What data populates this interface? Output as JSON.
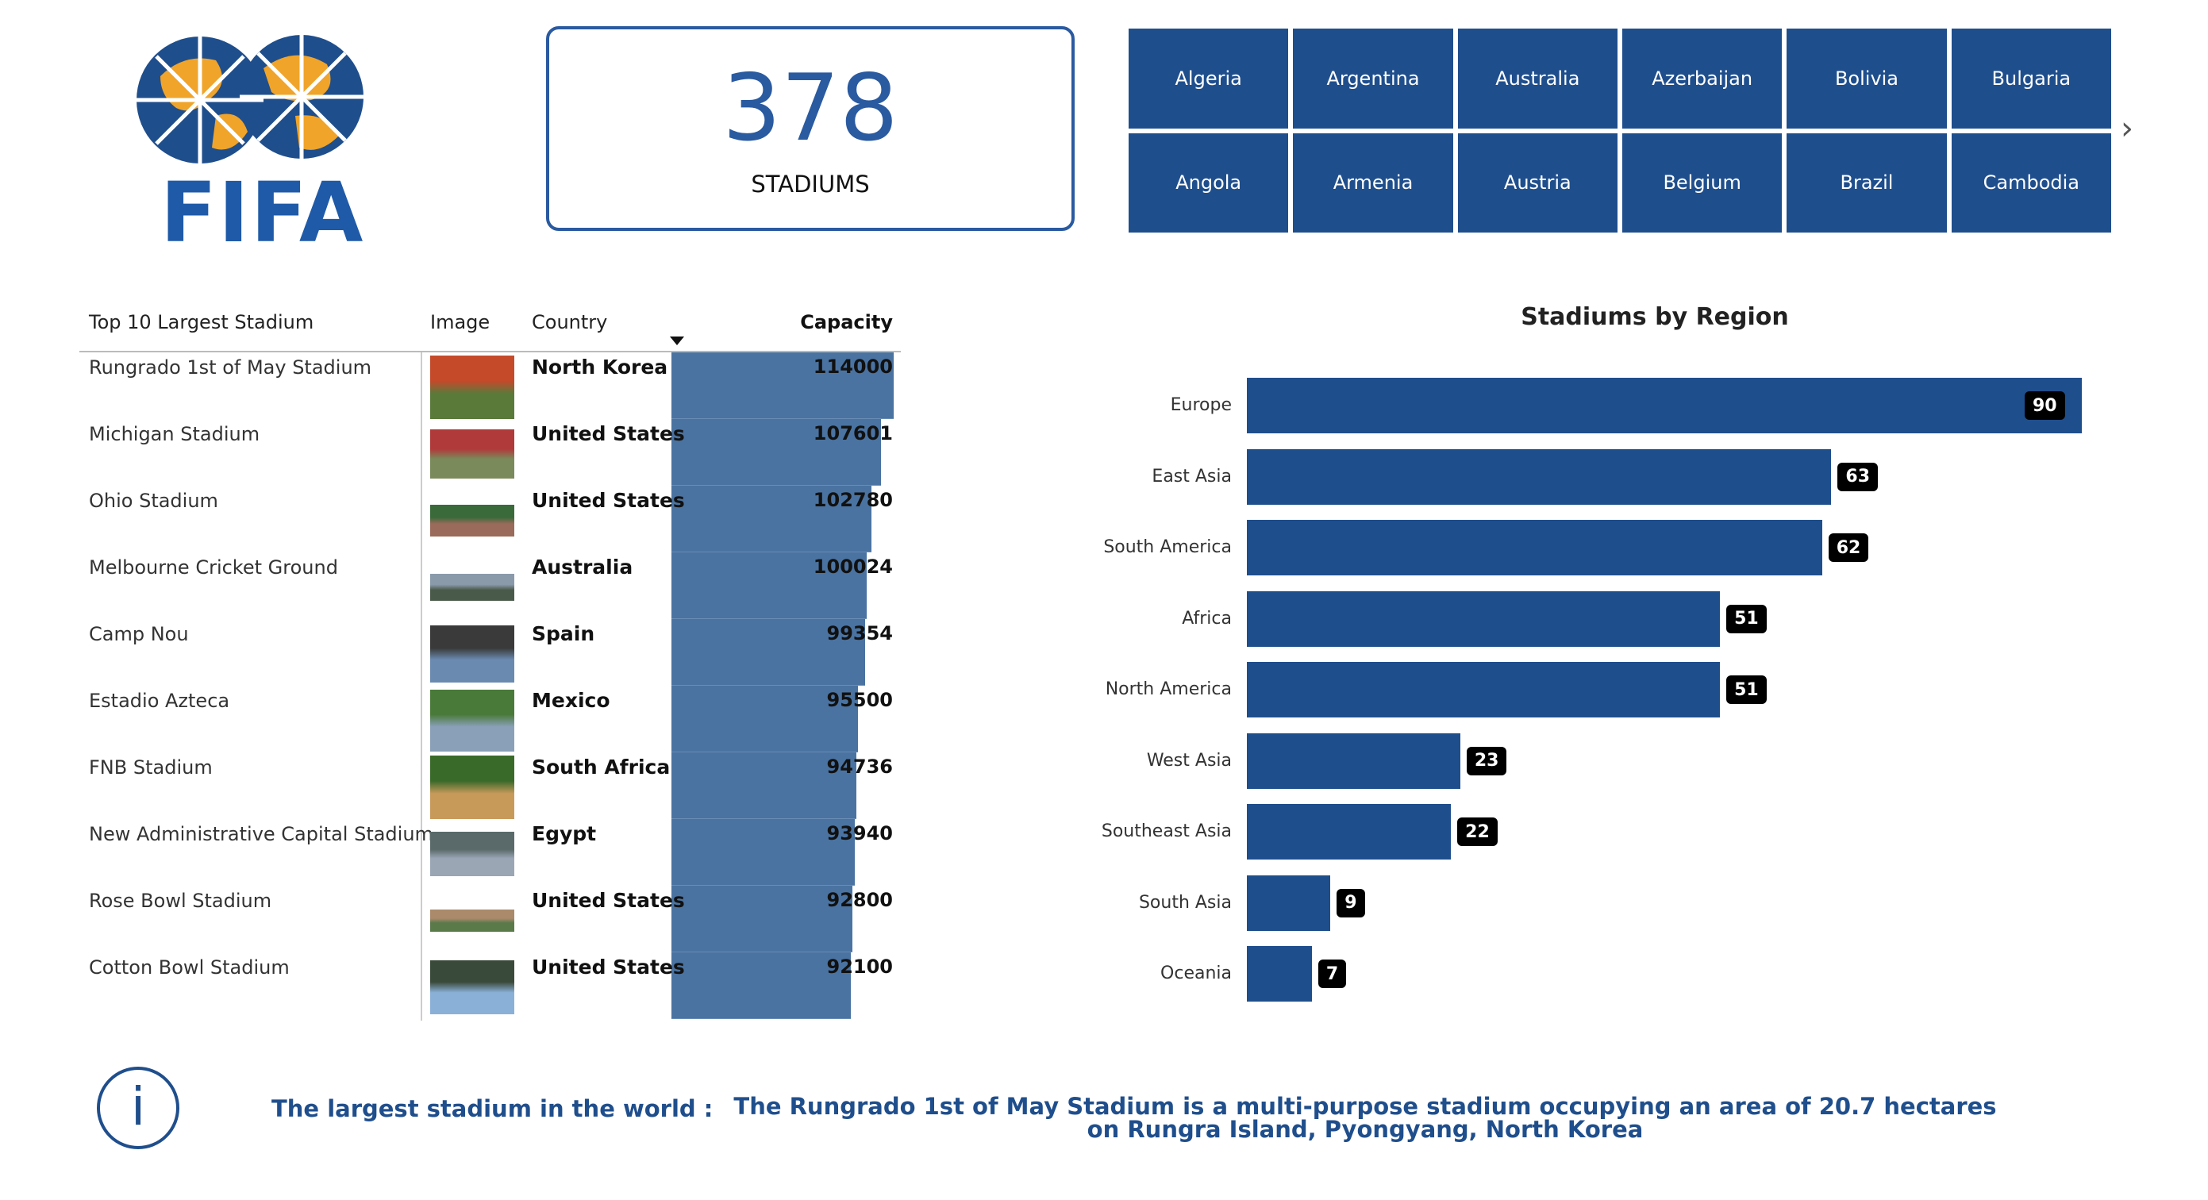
{
  "logo": {
    "text": "FIFA"
  },
  "kpi": {
    "value": "378",
    "label": "STADIUMS"
  },
  "countries": [
    "Algeria",
    "Argentina",
    "Australia",
    "Azerbaijan",
    "Bolivia",
    "Bulgaria",
    "Angola",
    "Armenia",
    "Austria",
    "Belgium",
    "Brazil",
    "Cambodia"
  ],
  "table": {
    "headers": {
      "name": "Top 10 Largest Stadium",
      "image": "Image",
      "country": "Country",
      "capacity": "Capacity"
    },
    "rows": [
      {
        "name": "Rungrado 1st of May Stadium",
        "country": "North Korea",
        "capacity": "114000"
      },
      {
        "name": "Michigan Stadium",
        "country": "United States",
        "capacity": "107601"
      },
      {
        "name": "Ohio Stadium",
        "country": "United States",
        "capacity": "102780"
      },
      {
        "name": "Melbourne Cricket Ground",
        "country": "Australia",
        "capacity": "100024"
      },
      {
        "name": "Camp Nou",
        "country": "Spain",
        "capacity": "99354"
      },
      {
        "name": "Estadio Azteca",
        "country": "Mexico",
        "capacity": "95500"
      },
      {
        "name": "FNB Stadium",
        "country": "South Africa",
        "capacity": "94736"
      },
      {
        "name": "New Administrative Capital Stadium",
        "country": "Egypt",
        "capacity": "93940"
      },
      {
        "name": "Rose Bowl Stadium",
        "country": "United States",
        "capacity": "92800"
      },
      {
        "name": "Cotton Bowl Stadium",
        "country": "United States",
        "capacity": "92100"
      }
    ]
  },
  "chart_data": {
    "type": "bar",
    "orientation": "horizontal",
    "title": "Stadiums by Region",
    "categories": [
      "Europe",
      "East Asia",
      "South America",
      "Africa",
      "North America",
      "West Asia",
      "Southeast Asia",
      "South Asia",
      "Oceania"
    ],
    "values": [
      90,
      63,
      62,
      51,
      51,
      23,
      22,
      9,
      7
    ],
    "data_labels": true,
    "grid": false,
    "bar_color": "#1f4e8c"
  },
  "info": {
    "heading": "The largest stadium in the world :",
    "text": "The Rungrado 1st of May Stadium is a multi-purpose stadium occupying an area of 20.7 hectares  on Rungra Island, Pyongyang, North Korea"
  },
  "colors": {
    "accent": "#1f4e8c",
    "table_bar": "#4a73a1"
  }
}
